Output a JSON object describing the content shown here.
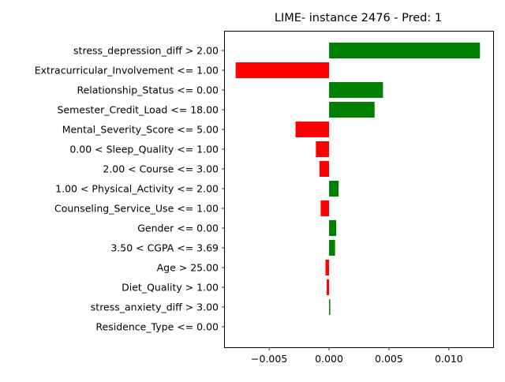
{
  "chart_data": {
    "type": "bar",
    "orientation": "horizontal",
    "title": "LIME- instance 2476 - Pred: 1",
    "xlabel": "",
    "ylabel": "",
    "xlim": [
      -0.0087,
      0.0137
    ],
    "xticks": [
      -0.005,
      0.0,
      0.005,
      0.01
    ],
    "xtick_labels": [
      "−0.005",
      "0.000",
      "0.005",
      "0.010"
    ],
    "grid": false,
    "legend": "none",
    "positive_color": "#008000",
    "negative_color": "#ff0000",
    "categories": [
      "stress_depression_diff > 2.00",
      "Extracurricular_Involvement <= 1.00",
      "Relationship_Status <= 0.00",
      "Semester_Credit_Load <= 18.00",
      "Mental_Severity_Score <= 5.00",
      "0.00 < Sleep_Quality <= 1.00",
      "2.00 < Course <= 3.00",
      "1.00 < Physical_Activity <= 2.00",
      "Counseling_Service_Use <= 1.00",
      "Gender <= 0.00",
      "3.50 < CGPA <= 3.69",
      "Age > 25.00",
      "Diet_Quality > 1.00",
      "stress_anxiety_diff > 3.00",
      "Residence_Type <= 0.00"
    ],
    "values": [
      0.0126,
      -0.0078,
      0.0045,
      0.0038,
      -0.0028,
      -0.0011,
      -0.0008,
      0.0008,
      -0.0007,
      0.0006,
      0.0005,
      -0.0003,
      -0.0002,
      0.0001,
      0.0
    ]
  }
}
